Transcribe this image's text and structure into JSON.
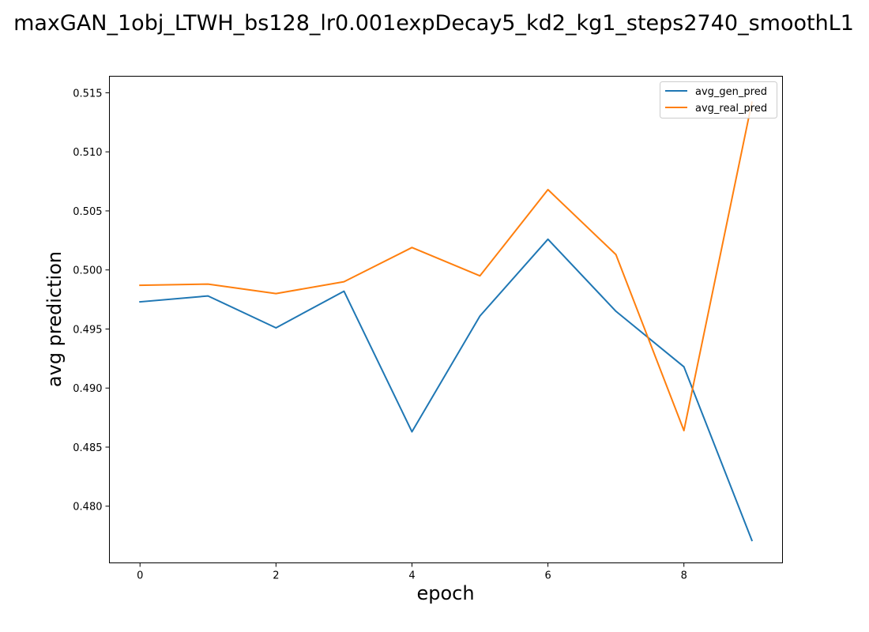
{
  "chart_data": {
    "type": "line",
    "title": "maxGAN_1obj_LTWH_bs128_lr0.001expDecay5_kd2_kg1_steps2740_smoothL1",
    "xlabel": "epoch",
    "ylabel": "avg prediction",
    "x": [
      0,
      1,
      2,
      3,
      4,
      5,
      6,
      7,
      8,
      9
    ],
    "xlim": [
      -0.45,
      9.45
    ],
    "ylim": [
      0.4752,
      0.5164
    ],
    "xticks": [
      0,
      2,
      4,
      6,
      8
    ],
    "xtick_labels": [
      "0",
      "2",
      "4",
      "6",
      "8"
    ],
    "yticks": [
      0.48,
      0.485,
      0.49,
      0.495,
      0.5,
      0.505,
      0.51,
      0.515
    ],
    "ytick_labels": [
      "0.480",
      "0.485",
      "0.490",
      "0.495",
      "0.500",
      "0.505",
      "0.510",
      "0.515"
    ],
    "grid": false,
    "legend_position": "top-right",
    "series": [
      {
        "name": "avg_gen_pred",
        "color": "#1f77b4",
        "values": [
          0.4973,
          0.4978,
          0.4951,
          0.4982,
          0.4863,
          0.4961,
          0.5026,
          0.4965,
          0.4918,
          0.4771
        ]
      },
      {
        "name": "avg_real_pred",
        "color": "#ff7f0e",
        "values": [
          0.4987,
          0.4988,
          0.498,
          0.499,
          0.5019,
          0.4995,
          0.5068,
          0.5013,
          0.4864,
          0.5142
        ]
      }
    ]
  }
}
